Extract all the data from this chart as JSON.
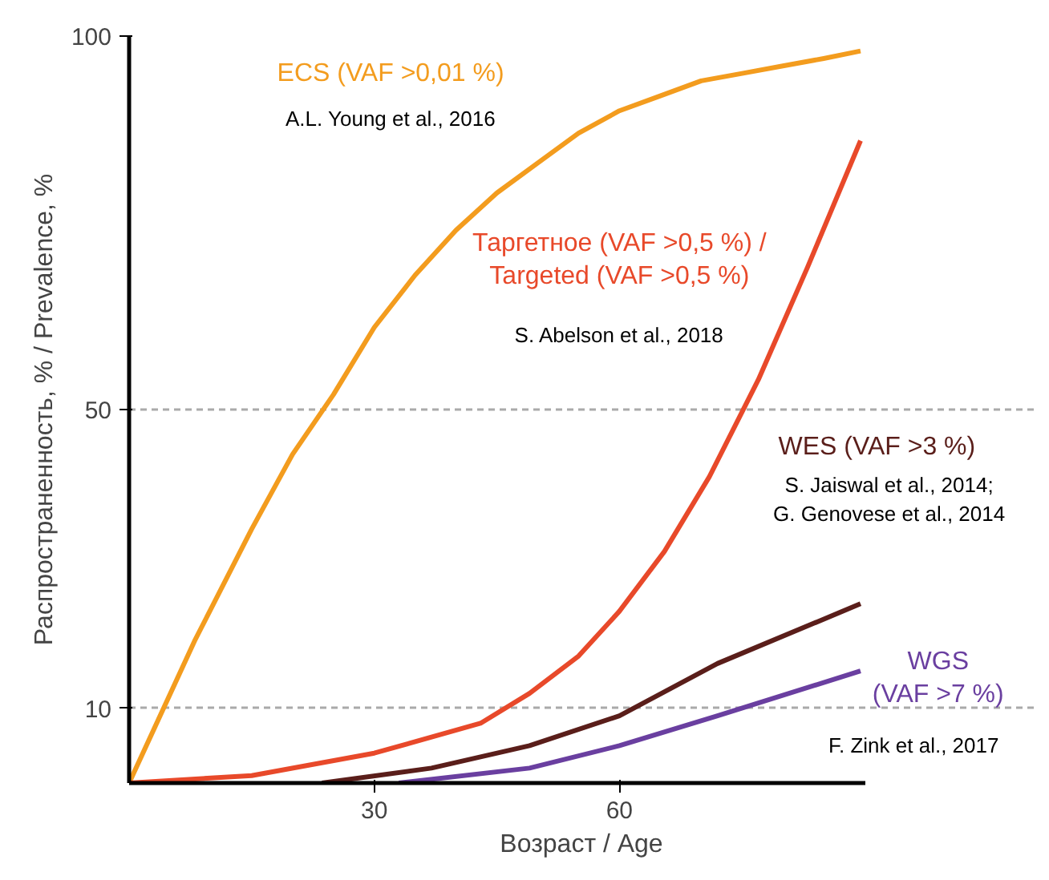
{
  "chart_data": {
    "type": "line",
    "xlabel": "Возраст / Age",
    "ylabel": "Распространенность, % / Prevalence, %",
    "xlim": [
      0,
      90
    ],
    "ylim": [
      0,
      100
    ],
    "xticks": [
      30,
      60
    ],
    "yticks": [
      10,
      50,
      100
    ],
    "grid": "y",
    "legend": false,
    "marker": "none",
    "line_style": "solid",
    "series": [
      {
        "name": "ECS (VAF >0,01 %)",
        "color": "#f39c1e",
        "x": [
          0,
          8,
          15,
          20,
          25,
          30,
          35,
          40,
          45,
          50,
          55,
          60,
          65,
          70,
          75,
          80,
          85,
          89.5
        ],
        "values": [
          0,
          19,
          34,
          44,
          52,
          61,
          68,
          74,
          79,
          83,
          87,
          90,
          92,
          94,
          95,
          96,
          97,
          98
        ]
      },
      {
        "name": "Таргетное (VAF >0,5 %) /\nTargeted (VAF >0,5 %)",
        "color": "#e8492a",
        "x": [
          0,
          15,
          30,
          43,
          49,
          55,
          60,
          65.5,
          71,
          77,
          83,
          89.5
        ],
        "values": [
          0,
          1,
          4,
          8,
          12,
          17,
          23,
          31,
          41,
          54,
          69,
          86
        ]
      },
      {
        "name": "WES (VAF >3 %)",
        "color": "#5a1e1a",
        "x": [
          23.6,
          37,
          49,
          60,
          72,
          89.5
        ],
        "values": [
          0,
          2,
          5,
          9,
          16,
          24
        ]
      },
      {
        "name": "WGS\n(VAF >7 %)",
        "color": "#6a3fa0",
        "x": [
          33,
          49,
          60,
          72,
          89.5
        ],
        "values": [
          0,
          2,
          5,
          9,
          15
        ]
      }
    ],
    "annotations": [
      "A.L. Young et al., 2016",
      "S. Abelson et al., 2018",
      "S. Jaiswal et al., 2014;\nG. Genovese et al., 2014",
      "F. Zink et al., 2017"
    ]
  }
}
